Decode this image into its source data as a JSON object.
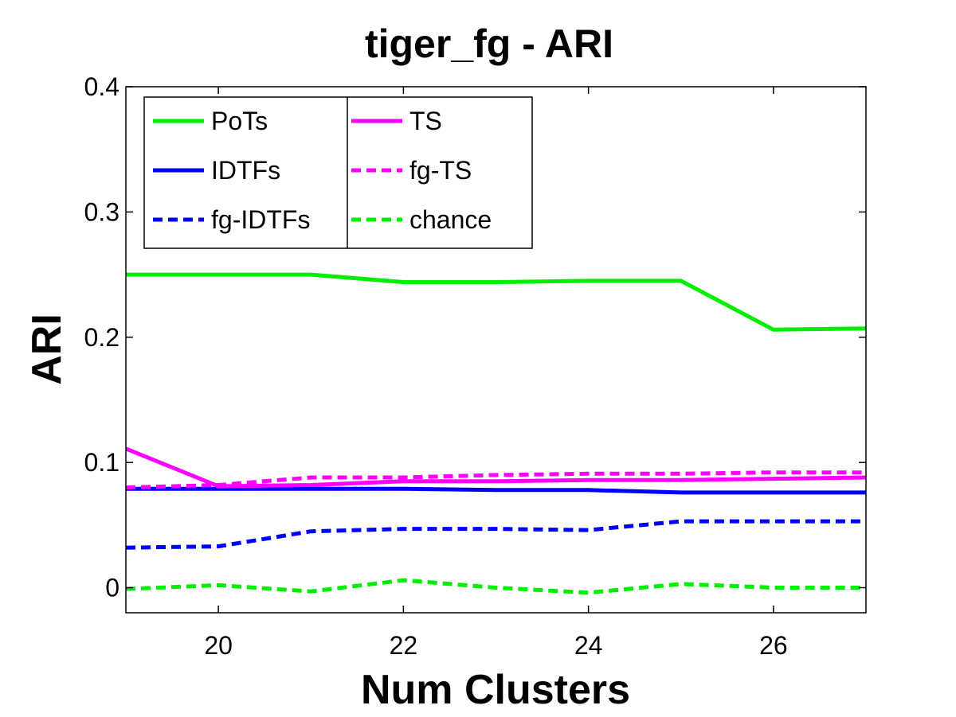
{
  "chart_data": {
    "type": "line",
    "title": "tiger_fg - ARI",
    "xlabel": "Num Clusters",
    "ylabel": "ARI",
    "xlim": [
      19,
      27
    ],
    "ylim": [
      -0.02,
      0.4
    ],
    "xticks": [
      20,
      22,
      24,
      26
    ],
    "yticks": [
      0,
      0.1,
      0.2,
      0.3,
      0.4
    ],
    "ytick_labels": [
      "0",
      "0.1",
      "0.2",
      "0.3",
      "0.4"
    ],
    "legend_position": "top-left",
    "x": [
      19,
      20,
      21,
      22,
      23,
      24,
      25,
      26,
      27
    ],
    "series": [
      {
        "name": "PoTs",
        "color": "#00ee00",
        "dashed": false,
        "values": [
          0.25,
          0.25,
          0.25,
          0.244,
          0.244,
          0.245,
          0.245,
          0.206,
          0.207
        ]
      },
      {
        "name": "IDTFs",
        "color": "#0000ff",
        "dashed": false,
        "values": [
          0.079,
          0.079,
          0.079,
          0.079,
          0.078,
          0.078,
          0.076,
          0.076,
          0.076
        ]
      },
      {
        "name": "fg-IDTFs",
        "color": "#0000ff",
        "dashed": true,
        "values": [
          0.032,
          0.033,
          0.045,
          0.047,
          0.047,
          0.046,
          0.053,
          0.053,
          0.053
        ]
      },
      {
        "name": "TS",
        "color": "#ff00ff",
        "dashed": false,
        "values": [
          0.111,
          0.081,
          0.082,
          0.085,
          0.085,
          0.086,
          0.086,
          0.087,
          0.088
        ]
      },
      {
        "name": "fg-TS",
        "color": "#ff00ff",
        "dashed": true,
        "values": [
          0.08,
          0.082,
          0.088,
          0.088,
          0.09,
          0.091,
          0.091,
          0.092,
          0.092
        ]
      },
      {
        "name": "chance",
        "color": "#00ee00",
        "dashed": true,
        "values": [
          -0.001,
          0.002,
          -0.003,
          0.006,
          0.0,
          -0.004,
          0.003,
          0.0,
          0.0
        ]
      }
    ]
  }
}
